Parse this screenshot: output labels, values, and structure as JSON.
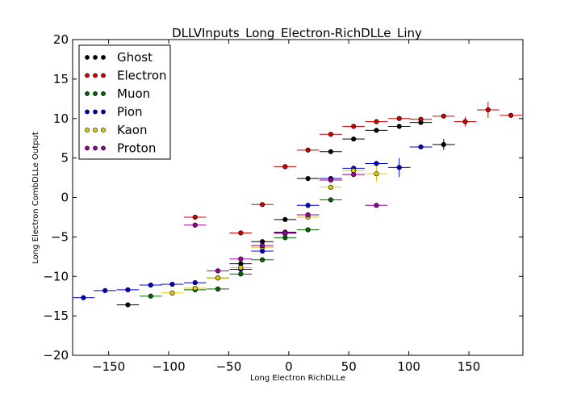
{
  "chart_data": {
    "type": "scatter",
    "title": "DLLVInputs_Long_Electron-RichDLLe_Liny",
    "xlabel": "Long Electron RichDLLe",
    "ylabel": "Long Electron CombDLLe Output",
    "xlim": [
      -180,
      195
    ],
    "ylim": [
      -20,
      20
    ],
    "x_ticks": [
      -150,
      -100,
      -50,
      0,
      50,
      100,
      150
    ],
    "x_tick_labels": [
      "−150",
      "−100",
      "−50",
      "0",
      "50",
      "100",
      "150"
    ],
    "y_ticks": [
      -20,
      -15,
      -10,
      -5,
      0,
      5,
      10,
      15,
      20
    ],
    "y_tick_labels": [
      "−20",
      "−15",
      "−10",
      "−5",
      "0",
      "5",
      "10",
      "15",
      "20"
    ],
    "grid": false,
    "legend_position": "top-left",
    "bin_half_width": 9.3,
    "series": [
      {
        "name": "Ghost",
        "color": "#000000",
        "points": [
          [
            -134,
            -13.6,
            0.2
          ],
          [
            -40,
            -8.4,
            0.3
          ],
          [
            -22,
            -5.6,
            0.3
          ],
          [
            -3,
            -2.8,
            0.3
          ],
          [
            16,
            2.4,
            0.2
          ],
          [
            35,
            5.8,
            0.2
          ],
          [
            54,
            7.4,
            0.2
          ],
          [
            73,
            8.5,
            0.2
          ],
          [
            92,
            9.0,
            0.2
          ],
          [
            110,
            9.5,
            0.3
          ],
          [
            129,
            6.7,
            0.7
          ]
        ]
      },
      {
        "name": "Electron",
        "color": "#cc0000",
        "points": [
          [
            -78,
            -2.5,
            0.3
          ],
          [
            -40,
            -4.5,
            0.3
          ],
          [
            -22,
            -0.9,
            0.2
          ],
          [
            -3,
            3.9,
            0.2
          ],
          [
            16,
            6.0,
            0.2
          ],
          [
            35,
            8.0,
            0.2
          ],
          [
            54,
            9.0,
            0.2
          ],
          [
            73,
            9.6,
            0.2
          ],
          [
            92,
            10.0,
            0.2
          ],
          [
            110,
            9.9,
            0.2
          ],
          [
            129,
            10.3,
            0.2
          ],
          [
            147,
            9.6,
            0.6
          ],
          [
            166,
            11.1,
            1.0
          ],
          [
            185,
            10.4,
            0.2
          ]
        ]
      },
      {
        "name": "Muon",
        "color": "#006600",
        "points": [
          [
            -115,
            -12.5,
            0.3
          ],
          [
            -78,
            -11.7,
            0.3
          ],
          [
            -59,
            -11.6,
            0.3
          ],
          [
            -40,
            -9.7,
            0.3
          ],
          [
            -22,
            -7.9,
            0.3
          ],
          [
            -3,
            -5.1,
            0.3
          ],
          [
            16,
            -4.1,
            0.3
          ],
          [
            35,
            -0.3,
            0.2
          ]
        ]
      },
      {
        "name": "Pion",
        "color": "#0000cc",
        "points": [
          [
            -171,
            -12.7,
            0.2
          ],
          [
            -153,
            -11.8,
            0.2
          ],
          [
            -134,
            -11.7,
            0.2
          ],
          [
            -115,
            -11.1,
            0.2
          ],
          [
            -97,
            -11.0,
            0.2
          ],
          [
            -78,
            -10.8,
            0.2
          ],
          [
            -59,
            -10.2,
            0.2
          ],
          [
            -40,
            -9.1,
            0.2
          ],
          [
            -22,
            -6.8,
            0.3
          ],
          [
            -3,
            -4.4,
            0.3
          ],
          [
            16,
            -1.0,
            0.3
          ],
          [
            35,
            2.4,
            0.3
          ],
          [
            54,
            3.7,
            0.3
          ],
          [
            73,
            4.3,
            0.3
          ],
          [
            92,
            3.8,
            1.2
          ],
          [
            110,
            6.4,
            0.2
          ]
        ]
      },
      {
        "name": "Kaon",
        "color": "#ddcc00",
        "points": [
          [
            -97,
            -12.1,
            0.3
          ],
          [
            -78,
            -11.5,
            0.3
          ],
          [
            -59,
            -10.2,
            0.3
          ],
          [
            -40,
            -8.9,
            0.3
          ],
          [
            -22,
            -6.3,
            0.3
          ],
          [
            -3,
            -4.6,
            0.3
          ],
          [
            16,
            -2.5,
            0.3
          ],
          [
            35,
            1.3,
            0.3
          ],
          [
            54,
            3.4,
            0.3
          ],
          [
            73,
            3.0,
            1.0
          ]
        ]
      },
      {
        "name": "Proton",
        "color": "#990099",
        "points": [
          [
            -78,
            -3.5,
            0.3
          ],
          [
            -59,
            -9.3,
            0.3
          ],
          [
            -40,
            -7.8,
            0.3
          ],
          [
            -22,
            -6.1,
            0.3
          ],
          [
            -3,
            -4.5,
            0.3
          ],
          [
            16,
            -2.2,
            0.3
          ],
          [
            35,
            2.2,
            0.3
          ],
          [
            54,
            2.9,
            0.3
          ],
          [
            73,
            -1.0,
            0.2
          ]
        ]
      }
    ]
  }
}
